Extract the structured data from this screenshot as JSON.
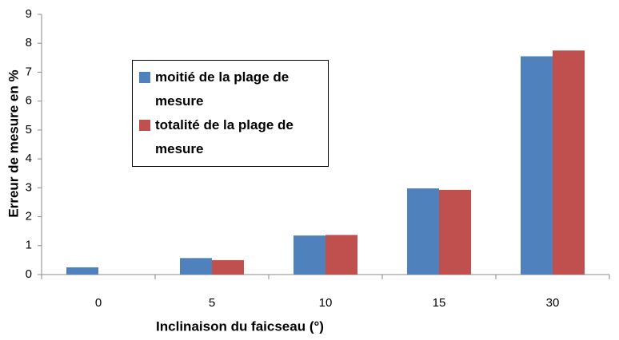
{
  "chart_data": {
    "type": "bar",
    "x_label": "Inclinaison du faicseau  (°)",
    "y_label": "Erreur de mesure en %",
    "categories": [
      "0",
      "5",
      "10",
      "15",
      "30"
    ],
    "series": [
      {
        "name": "moitié de la plage de mesure",
        "color": "#4f81bd",
        "values": [
          0.25,
          0.57,
          1.35,
          2.98,
          7.55
        ]
      },
      {
        "name": "totalité de la plage de mesure",
        "color": "#c0504d",
        "values": [
          0,
          0.5,
          1.37,
          2.93,
          7.75
        ]
      }
    ],
    "ylim": [
      0,
      9
    ],
    "yticks": [
      0,
      1,
      2,
      3,
      4,
      5,
      6,
      7,
      8,
      9
    ],
    "grid": false
  }
}
